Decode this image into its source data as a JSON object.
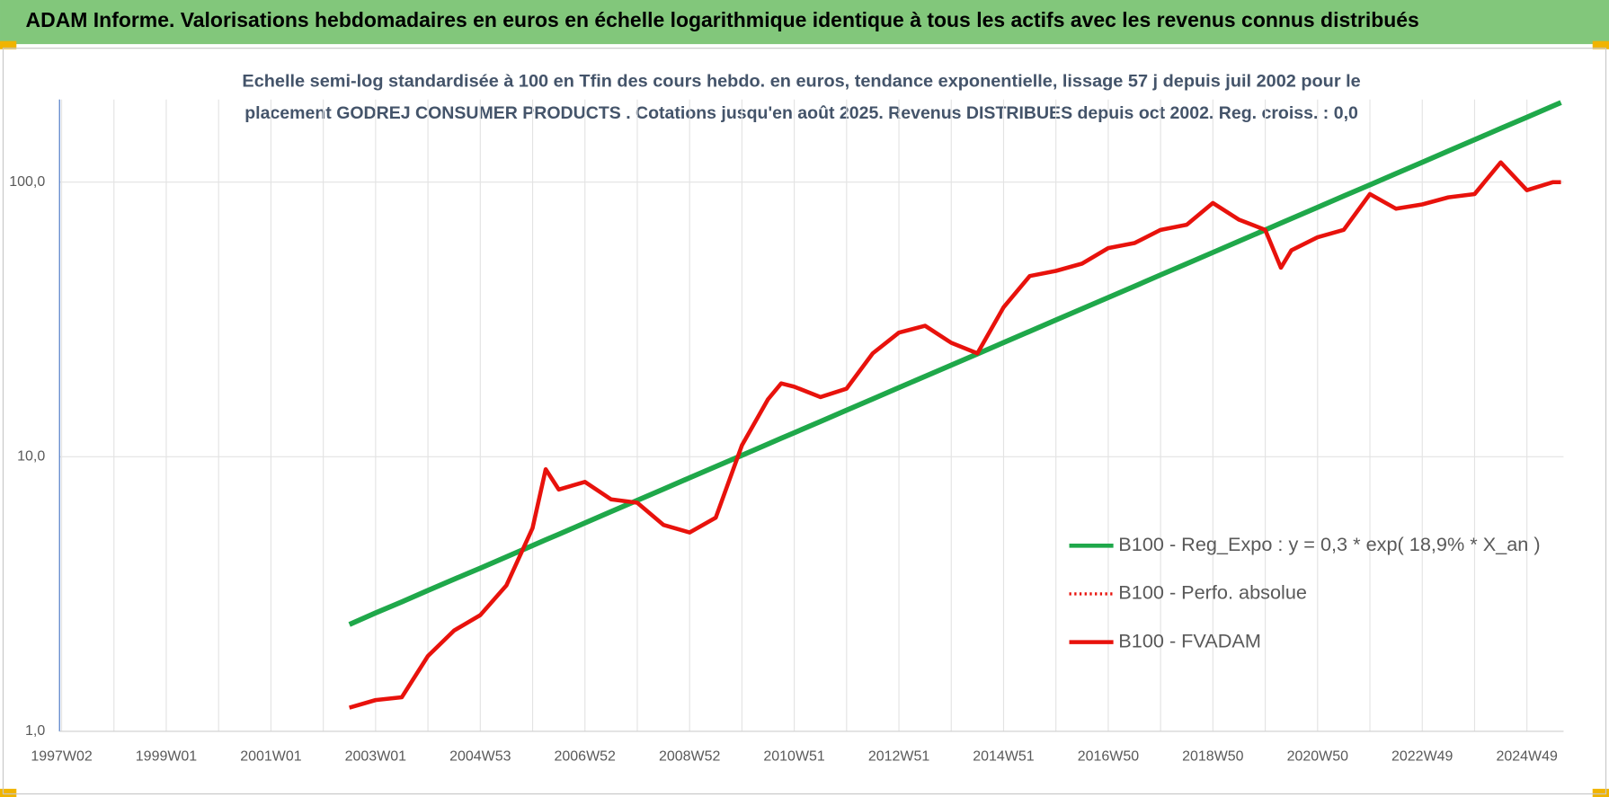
{
  "chart_data": {
    "type": "line",
    "title": "ADAM Informe. Valorisations hebdomadaires en euros en échelle logarithmique identique à tous les actifs avec les revenus connus distribués",
    "subtitle": [
      "Echelle semi-log standardisée à 100 en Tfin des cours hebdo. en euros, tendance exponentielle, lissage 57 j depuis juil 2002 pour le",
      "placement GODREJ CONSUMER PRODUCTS . Cotations jusqu'en août 2025. Revenus DISTRIBUES depuis oct 2002. Reg. croiss. : 0,0"
    ],
    "x": [
      2002.5,
      2003.0,
      2003.5,
      2004.0,
      2004.5,
      2005.0,
      2005.5,
      2006.0,
      2006.25,
      2006.5,
      2007.0,
      2007.5,
      2008.0,
      2008.5,
      2009.0,
      2009.5,
      2010.0,
      2010.5,
      2010.75,
      2011.0,
      2011.5,
      2012.0,
      2012.5,
      2013.0,
      2013.5,
      2014.0,
      2014.5,
      2015.0,
      2015.5,
      2016.0,
      2016.5,
      2017.0,
      2017.5,
      2018.0,
      2018.5,
      2019.0,
      2019.5,
      2020.0,
      2020.3,
      2020.5,
      2021.0,
      2021.5,
      2022.0,
      2022.5,
      2023.0,
      2023.5,
      2024.0,
      2024.5,
      2025.0,
      2025.5,
      2025.65
    ],
    "series": [
      {
        "name": "B100 - Reg_Expo : y = 0,3 * exp( 18,9% *  X_an )",
        "color": "#1fa84a",
        "style": "solid",
        "values": [
          2.45,
          2.7,
          2.96,
          3.26,
          3.58,
          3.93,
          4.32,
          4.75,
          4.98,
          5.22,
          5.74,
          6.31,
          6.94,
          7.62,
          8.38,
          9.21,
          10.12,
          11.13,
          11.67,
          12.23,
          13.44,
          14.77,
          16.24,
          17.85,
          19.62,
          21.56,
          23.7,
          26.05,
          28.63,
          31.47,
          34.58,
          38.01,
          41.78,
          45.93,
          50.47,
          55.48,
          60.97,
          67.02,
          70.93,
          73.65,
          80.97,
          88.99,
          97.81,
          107.5,
          118.1,
          129.9,
          142.7,
          156.9,
          172.4,
          189.5,
          194.9
        ]
      },
      {
        "name": "B100 - Perfo. absolue",
        "color": "#e8120c",
        "style": "dotted",
        "values": [
          1.22,
          1.3,
          1.33,
          1.88,
          2.33,
          2.65,
          3.4,
          5.5,
          9.0,
          7.6,
          8.1,
          7.0,
          6.8,
          5.65,
          5.3,
          6.0,
          11.0,
          16.2,
          18.5,
          18,
          16.5,
          17.7,
          23.8,
          28.3,
          30,
          26,
          23.8,
          35,
          45.5,
          47.5,
          50.5,
          57.5,
          60,
          67,
          70,
          84,
          73,
          67,
          48.8,
          56.5,
          63,
          67,
          90.5,
          80,
          83,
          88,
          90.5,
          118,
          93.5,
          100,
          100
        ]
      },
      {
        "name": "B100 - FVADAM",
        "color": "#e8120c",
        "style": "solid",
        "values": [
          1.22,
          1.3,
          1.33,
          1.88,
          2.33,
          2.65,
          3.4,
          5.5,
          9.0,
          7.6,
          8.1,
          7.0,
          6.8,
          5.65,
          5.3,
          6.0,
          11.0,
          16.2,
          18.5,
          18,
          16.5,
          17.7,
          23.8,
          28.3,
          30,
          26,
          23.8,
          35,
          45.5,
          47.5,
          50.5,
          57.5,
          60,
          67,
          70,
          84,
          73,
          67,
          48.8,
          56.5,
          63,
          67,
          90.5,
          80,
          83,
          88,
          90.5,
          118,
          93.5,
          100,
          100
        ]
      }
    ],
    "xlim": [
      1996.96,
      2025.7
    ],
    "xticks": [
      {
        "value": 1997,
        "label": "1997W02"
      },
      {
        "value": 1999,
        "label": "1999W01"
      },
      {
        "value": 2001,
        "label": "2001W01"
      },
      {
        "value": 2003,
        "label": "2003W01"
      },
      {
        "value": 2005,
        "label": "2004W53"
      },
      {
        "value": 2007,
        "label": "2006W52"
      },
      {
        "value": 2009,
        "label": "2008W52"
      },
      {
        "value": 2011,
        "label": "2010W51"
      },
      {
        "value": 2013,
        "label": "2012W51"
      },
      {
        "value": 2015,
        "label": "2014W51"
      },
      {
        "value": 2017,
        "label": "2016W50"
      },
      {
        "value": 2019,
        "label": "2018W50"
      },
      {
        "value": 2021,
        "label": "2020W50"
      },
      {
        "value": 2023,
        "label": "2022W49"
      },
      {
        "value": 2025,
        "label": "2024W49"
      }
    ],
    "xticks_minor": [
      1998,
      2000,
      2002,
      2004,
      2006,
      2008,
      2010,
      2012,
      2014,
      2016,
      2018,
      2020,
      2022,
      2024
    ],
    "ylim": [
      1,
      200
    ],
    "yticks": [
      {
        "value": 1,
        "label": "1,0"
      },
      {
        "value": 10,
        "label": "10,0"
      },
      {
        "value": 100,
        "label": "100,0"
      }
    ],
    "log_y": true,
    "grid": true,
    "legend": "lower right"
  }
}
